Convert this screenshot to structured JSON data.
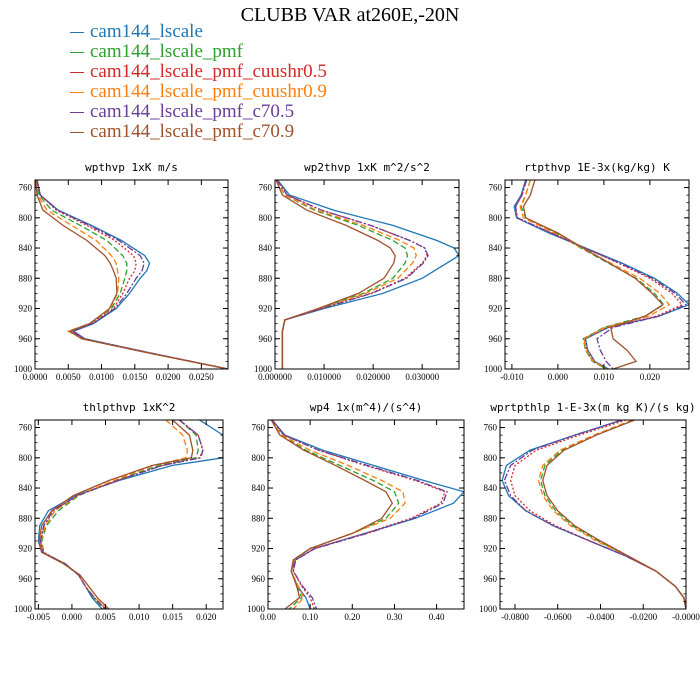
{
  "figure_title": "CLUBB VAR at260E,-20N",
  "legend": [
    {
      "label": "cam144_lscale",
      "color": "#1f77b4"
    },
    {
      "label": "cam144_lscale_pmf",
      "color": "#2ca02c"
    },
    {
      "label": "cam144_lscale_pmf_cuushr0.5",
      "color": "#d62728"
    },
    {
      "label": "cam144_lscale_pmf_cuushr0.9",
      "color": "#ff7f0e"
    },
    {
      "label": "cam144_lscale_pmf_c70.5",
      "color": "#6a3d9a"
    },
    {
      "label": "cam144_lscale_pmf_c70.9",
      "color": "#a0522d"
    }
  ],
  "series_styles": [
    "solid",
    "dash",
    "dot",
    "dash",
    "dashdot",
    "solid"
  ],
  "chart_data": [
    {
      "type": "line",
      "title": "wpthvp  1xK m/s",
      "xlim": [
        0,
        0.029
      ],
      "ylim": [
        750,
        1000
      ],
      "xticks": [
        0,
        0.005,
        0.01,
        0.015,
        0.02,
        0.025
      ],
      "xtick_labels": [
        "0.0000",
        "0.0050",
        "0.0100",
        "0.0150",
        "0.0200",
        "0.0250"
      ],
      "yticks": [
        760,
        800,
        840,
        880,
        920,
        960,
        1000
      ],
      "y": [
        750,
        770,
        790,
        810,
        830,
        850,
        860,
        870,
        880,
        900,
        920,
        940,
        950,
        960,
        980,
        1000
      ],
      "series": [
        {
          "name": "cam144_lscale",
          "x": [
            0.0003,
            0.0008,
            0.0035,
            0.0085,
            0.013,
            0.0165,
            0.0172,
            0.0168,
            0.0158,
            0.0142,
            0.0122,
            0.0088,
            0.0058,
            0.0075,
            0.018,
            0.029
          ]
        },
        {
          "name": "cam144_lscale_pmf",
          "x": [
            0.0002,
            0.0006,
            0.0025,
            0.0068,
            0.0108,
            0.0132,
            0.0138,
            0.0138,
            0.0135,
            0.0128,
            0.0115,
            0.0083,
            0.0055,
            0.0072,
            0.0178,
            0.029
          ]
        },
        {
          "name": "cam144_lscale_pmf_cuushr0.5",
          "x": [
            0.0003,
            0.0008,
            0.0032,
            0.0078,
            0.012,
            0.0148,
            0.0152,
            0.015,
            0.0142,
            0.0132,
            0.0118,
            0.0085,
            0.0056,
            0.0073,
            0.0179,
            0.029
          ]
        },
        {
          "name": "cam144_lscale_pmf_cuushr0.9",
          "x": [
            0.0001,
            0.0004,
            0.0018,
            0.0055,
            0.0092,
            0.0115,
            0.0122,
            0.0124,
            0.0126,
            0.0124,
            0.0113,
            0.0082,
            0.005,
            0.0071,
            0.0178,
            0.029
          ]
        },
        {
          "name": "cam144_lscale_pmf_c70.5",
          "x": [
            0.0003,
            0.0008,
            0.0034,
            0.0082,
            0.0126,
            0.0158,
            0.0164,
            0.0161,
            0.0152,
            0.0138,
            0.012,
            0.0087,
            0.0057,
            0.0074,
            0.018,
            0.029
          ]
        },
        {
          "name": "cam144_lscale_pmf_c70.9",
          "x": [
            0.0001,
            0.0003,
            0.0012,
            0.0042,
            0.0078,
            0.0105,
            0.0113,
            0.0118,
            0.0122,
            0.0123,
            0.0112,
            0.0082,
            0.0052,
            0.007,
            0.0177,
            0.029
          ]
        }
      ]
    },
    {
      "type": "line",
      "title": "wp2thvp  1xK m^2/s^2",
      "xlim": [
        0,
        0.0375
      ],
      "ylim": [
        750,
        1000
      ],
      "xticks": [
        0,
        0.01,
        0.02,
        0.03
      ],
      "xtick_labels": [
        "0.000000",
        "0.010000",
        "0.020000",
        "0.030000"
      ],
      "yticks": [
        760,
        800,
        840,
        880,
        920,
        960,
        1000
      ],
      "y": [
        750,
        770,
        790,
        810,
        830,
        840,
        850,
        860,
        880,
        900,
        920,
        935,
        950,
        970,
        1000
      ],
      "series": [
        {
          "name": "cam144_lscale",
          "x": [
            0.0005,
            0.003,
            0.012,
            0.024,
            0.033,
            0.0365,
            0.0375,
            0.035,
            0.03,
            0.022,
            0.01,
            0.002,
            0.0015,
            0.0015,
            0.0015
          ]
        },
        {
          "name": "cam144_lscale_pmf",
          "x": [
            0.0003,
            0.002,
            0.008,
            0.017,
            0.024,
            0.0265,
            0.027,
            0.0265,
            0.024,
            0.018,
            0.009,
            0.002,
            0.0015,
            0.0015,
            0.0015
          ]
        },
        {
          "name": "cam144_lscale_pmf_cuushr0.5",
          "x": [
            0.0004,
            0.0025,
            0.0095,
            0.0195,
            0.0275,
            0.0305,
            0.031,
            0.03,
            0.0265,
            0.0195,
            0.0095,
            0.002,
            0.0015,
            0.0015,
            0.0015
          ]
        },
        {
          "name": "cam144_lscale_pmf_cuushr0.9",
          "x": [
            0.0003,
            0.002,
            0.0085,
            0.018,
            0.0255,
            0.0283,
            0.0288,
            0.028,
            0.025,
            0.0185,
            0.0092,
            0.002,
            0.0015,
            0.0015,
            0.0015
          ]
        },
        {
          "name": "cam144_lscale_pmf_c70.5",
          "x": [
            0.0004,
            0.0025,
            0.0095,
            0.0195,
            0.0275,
            0.0305,
            0.0312,
            0.0302,
            0.0268,
            0.0197,
            0.0096,
            0.002,
            0.0015,
            0.0015,
            0.0015
          ]
        },
        {
          "name": "cam144_lscale_pmf_c70.9",
          "x": [
            0.0002,
            0.0015,
            0.0065,
            0.0145,
            0.021,
            0.0235,
            0.0245,
            0.0242,
            0.0222,
            0.017,
            0.0088,
            0.002,
            0.0015,
            0.0015,
            0.0015
          ]
        }
      ]
    },
    {
      "type": "line",
      "title": "rtpthvp  1E-3x(kg/kg) K",
      "xlim": [
        -0.0115,
        0.0285
      ],
      "ylim": [
        750,
        1000
      ],
      "xticks": [
        -0.01,
        0,
        0.01,
        0.02
      ],
      "xtick_labels": [
        "-0.010",
        "0.000",
        "0.010",
        "0.020"
      ],
      "yticks": [
        760,
        800,
        840,
        880,
        920,
        960,
        1000
      ],
      "y": [
        750,
        770,
        785,
        800,
        820,
        840,
        860,
        880,
        900,
        915,
        930,
        945,
        960,
        975,
        990,
        1000
      ],
      "series": [
        {
          "name": "cam144_lscale",
          "x": [
            -0.007,
            -0.008,
            -0.0095,
            -0.009,
            -0.002,
            0.006,
            0.014,
            0.021,
            0.026,
            0.0285,
            0.022,
            0.011,
            0.006,
            0.0065,
            0.008,
            0.011
          ]
        },
        {
          "name": "cam144_lscale_pmf",
          "x": [
            -0.006,
            -0.007,
            -0.008,
            -0.007,
            -0.0005,
            0.005,
            0.011,
            0.017,
            0.021,
            0.023,
            0.019,
            0.01,
            0.0055,
            0.006,
            0.0075,
            0.0105
          ]
        },
        {
          "name": "cam144_lscale_pmf_cuushr0.5",
          "x": [
            -0.007,
            -0.0078,
            -0.0092,
            -0.0088,
            -0.0015,
            0.0058,
            0.0132,
            0.02,
            0.0248,
            0.027,
            0.0215,
            0.0108,
            0.0058,
            0.0063,
            0.0078,
            0.0108
          ]
        },
        {
          "name": "cam144_lscale_pmf_cuushr0.9",
          "x": [
            -0.006,
            -0.007,
            -0.0082,
            -0.0075,
            -0.0008,
            0.0052,
            0.0115,
            0.0178,
            0.0222,
            0.0242,
            0.0198,
            0.0102,
            0.0056,
            0.0061,
            0.0076,
            0.0106
          ]
        },
        {
          "name": "cam144_lscale_pmf_c70.5",
          "x": [
            -0.0068,
            -0.0078,
            -0.0092,
            -0.0088,
            -0.0015,
            0.0058,
            0.0135,
            0.0205,
            0.0255,
            0.0278,
            0.022,
            0.012,
            0.0085,
            0.0092,
            0.0105,
            0.012
          ]
        },
        {
          "name": "cam144_lscale_pmf_c70.9",
          "x": [
            -0.005,
            -0.006,
            -0.0075,
            -0.007,
            0,
            0.0055,
            0.0112,
            0.0168,
            0.0205,
            0.0228,
            0.019,
            0.0115,
            0.012,
            0.015,
            0.017,
            0.012
          ]
        }
      ]
    },
    {
      "type": "line",
      "title": "thlpthvp  1xK^2",
      "xlim": [
        -0.0055,
        0.0225
      ],
      "ylim": [
        750,
        1000
      ],
      "xticks": [
        -0.005,
        0,
        0.005,
        0.01,
        0.015,
        0.02
      ],
      "xtick_labels": [
        "-0.005",
        "0.000",
        "0.005",
        "0.010",
        "0.015",
        "0.020"
      ],
      "yticks": [
        760,
        800,
        840,
        880,
        920,
        960,
        1000
      ],
      "y": [
        750,
        770,
        790,
        800,
        810,
        830,
        850,
        870,
        890,
        910,
        925,
        940,
        955,
        970,
        985,
        1000
      ],
      "series": [
        {
          "name": "cam144_lscale",
          "x": [
            0.019,
            0.0225,
            0.0225,
            0.0225,
            0.015,
            0.007,
            0.0005,
            -0.0035,
            -0.0048,
            -0.005,
            -0.0045,
            -0.001,
            0.001,
            0.002,
            0.003,
            0.0045
          ]
        },
        {
          "name": "cam144_lscale_pmf",
          "x": [
            0.016,
            0.0185,
            0.0188,
            0.0185,
            0.013,
            0.0065,
            0.001,
            -0.002,
            -0.0038,
            -0.0045,
            -0.0042,
            -0.0012,
            0.001,
            0.002,
            0.0032,
            0.0048
          ]
        },
        {
          "name": "cam144_lscale_pmf_cuushr0.5",
          "x": [
            0.016,
            0.0188,
            0.0195,
            0.019,
            0.0135,
            0.0068,
            0.0008,
            -0.0028,
            -0.0042,
            -0.0047,
            -0.0043,
            -0.0011,
            0.001,
            0.002,
            0.0033,
            0.005
          ]
        },
        {
          "name": "cam144_lscale_pmf_cuushr0.9",
          "x": [
            0.014,
            0.0165,
            0.0172,
            0.017,
            0.0122,
            0.0062,
            0.0008,
            -0.0025,
            -0.004,
            -0.0046,
            -0.0043,
            -0.0011,
            0.001,
            0.002,
            0.0034,
            0.0052
          ]
        },
        {
          "name": "cam144_lscale_pmf_c70.5",
          "x": [
            0.016,
            0.0188,
            0.0195,
            0.0192,
            0.0135,
            0.0068,
            0.0008,
            -0.0028,
            -0.0042,
            -0.0047,
            -0.0043,
            -0.0011,
            0.001,
            0.002,
            0.0033,
            0.005
          ]
        },
        {
          "name": "cam144_lscale_pmf_c70.9",
          "x": [
            0.015,
            0.0175,
            0.018,
            0.0178,
            0.012,
            0.0055,
            0.0002,
            -0.003,
            -0.0045,
            -0.0049,
            -0.0045,
            -0.0013,
            0.0012,
            0.0025,
            0.0038,
            0.0055
          ]
        }
      ]
    },
    {
      "type": "line",
      "title": "wp4  1x(m^4)/(s^4)",
      "xlim": [
        0,
        0.465
      ],
      "ylim": [
        750,
        1000
      ],
      "xticks": [
        0,
        0.1,
        0.2,
        0.3,
        0.4
      ],
      "xtick_labels": [
        "0.00",
        "0.10",
        "0.20",
        "0.30",
        "0.40"
      ],
      "yticks": [
        760,
        800,
        840,
        880,
        920,
        960,
        1000
      ],
      "y": [
        750,
        770,
        790,
        810,
        830,
        845,
        860,
        880,
        900,
        920,
        935,
        950,
        970,
        985,
        1000
      ],
      "series": [
        {
          "name": "cam144_lscale",
          "x": [
            0.01,
            0.04,
            0.13,
            0.25,
            0.37,
            0.465,
            0.44,
            0.35,
            0.23,
            0.11,
            0.065,
            0.055,
            0.07,
            0.09,
            0.1
          ]
        },
        {
          "name": "cam144_lscale_pmf",
          "x": [
            0.008,
            0.03,
            0.09,
            0.17,
            0.25,
            0.3,
            0.31,
            0.28,
            0.2,
            0.1,
            0.06,
            0.055,
            0.07,
            0.08,
            0.05
          ]
        },
        {
          "name": "cam144_lscale_pmf_cuushr0.5",
          "x": [
            0.01,
            0.037,
            0.12,
            0.23,
            0.35,
            0.42,
            0.41,
            0.34,
            0.23,
            0.11,
            0.065,
            0.06,
            0.08,
            0.1,
            0.11
          ]
        },
        {
          "name": "cam144_lscale_pmf_cuushr0.9",
          "x": [
            0.008,
            0.032,
            0.1,
            0.19,
            0.27,
            0.32,
            0.325,
            0.29,
            0.2,
            0.1,
            0.062,
            0.055,
            0.072,
            0.085,
            0.06
          ]
        },
        {
          "name": "cam144_lscale_pmf_c70.5",
          "x": [
            0.01,
            0.038,
            0.12,
            0.235,
            0.355,
            0.425,
            0.415,
            0.345,
            0.235,
            0.112,
            0.066,
            0.06,
            0.082,
            0.105,
            0.115
          ]
        },
        {
          "name": "cam144_lscale_pmf_c70.9",
          "x": [
            0.008,
            0.028,
            0.085,
            0.16,
            0.23,
            0.28,
            0.295,
            0.27,
            0.2,
            0.1,
            0.06,
            0.055,
            0.068,
            0.075,
            0.04
          ]
        }
      ]
    },
    {
      "type": "line",
      "title": "wprtpthlp  1-E-3x(m kg K)/(s kg)",
      "xlim": [
        -0.087,
        0.0
      ],
      "ylim": [
        750,
        1000
      ],
      "xticks": [
        -0.08,
        -0.06,
        -0.04,
        -0.02,
        0.0
      ],
      "xtick_labels": [
        "-0.0800",
        "-0.0600",
        "-0.0400",
        "-0.0200",
        "-0.0000"
      ],
      "yticks": [
        760,
        800,
        840,
        880,
        920,
        960,
        1000
      ],
      "y": [
        750,
        770,
        790,
        810,
        830,
        850,
        870,
        890,
        910,
        930,
        950,
        970,
        985,
        1000
      ],
      "series": [
        {
          "name": "cam144_lscale",
          "x": [
            -0.03,
            -0.052,
            -0.073,
            -0.084,
            -0.086,
            -0.083,
            -0.075,
            -0.062,
            -0.045,
            -0.028,
            -0.014,
            -0.005,
            -0.001,
            0
          ]
        },
        {
          "name": "cam144_lscale_pmf",
          "x": [
            -0.025,
            -0.043,
            -0.058,
            -0.066,
            -0.068,
            -0.066,
            -0.061,
            -0.053,
            -0.041,
            -0.027,
            -0.014,
            -0.005,
            -0.001,
            0
          ]
        },
        {
          "name": "cam144_lscale_pmf_cuushr0.5",
          "x": [
            -0.028,
            -0.05,
            -0.07,
            -0.08,
            -0.082,
            -0.08,
            -0.073,
            -0.061,
            -0.045,
            -0.028,
            -0.014,
            -0.005,
            -0.001,
            0
          ]
        },
        {
          "name": "cam144_lscale_pmf_cuushr0.9",
          "x": [
            -0.025,
            -0.043,
            -0.059,
            -0.067,
            -0.069,
            -0.067,
            -0.062,
            -0.054,
            -0.042,
            -0.027,
            -0.014,
            -0.005,
            -0.001,
            0
          ]
        },
        {
          "name": "cam144_lscale_pmf_c70.5",
          "x": [
            -0.03,
            -0.052,
            -0.072,
            -0.082,
            -0.085,
            -0.082,
            -0.075,
            -0.062,
            -0.045,
            -0.028,
            -0.014,
            -0.005,
            -0.001,
            0
          ]
        },
        {
          "name": "cam144_lscale_pmf_c70.9",
          "x": [
            -0.024,
            -0.042,
            -0.057,
            -0.065,
            -0.067,
            -0.065,
            -0.06,
            -0.052,
            -0.04,
            -0.027,
            -0.014,
            -0.005,
            -0.001,
            0
          ]
        }
      ]
    }
  ]
}
